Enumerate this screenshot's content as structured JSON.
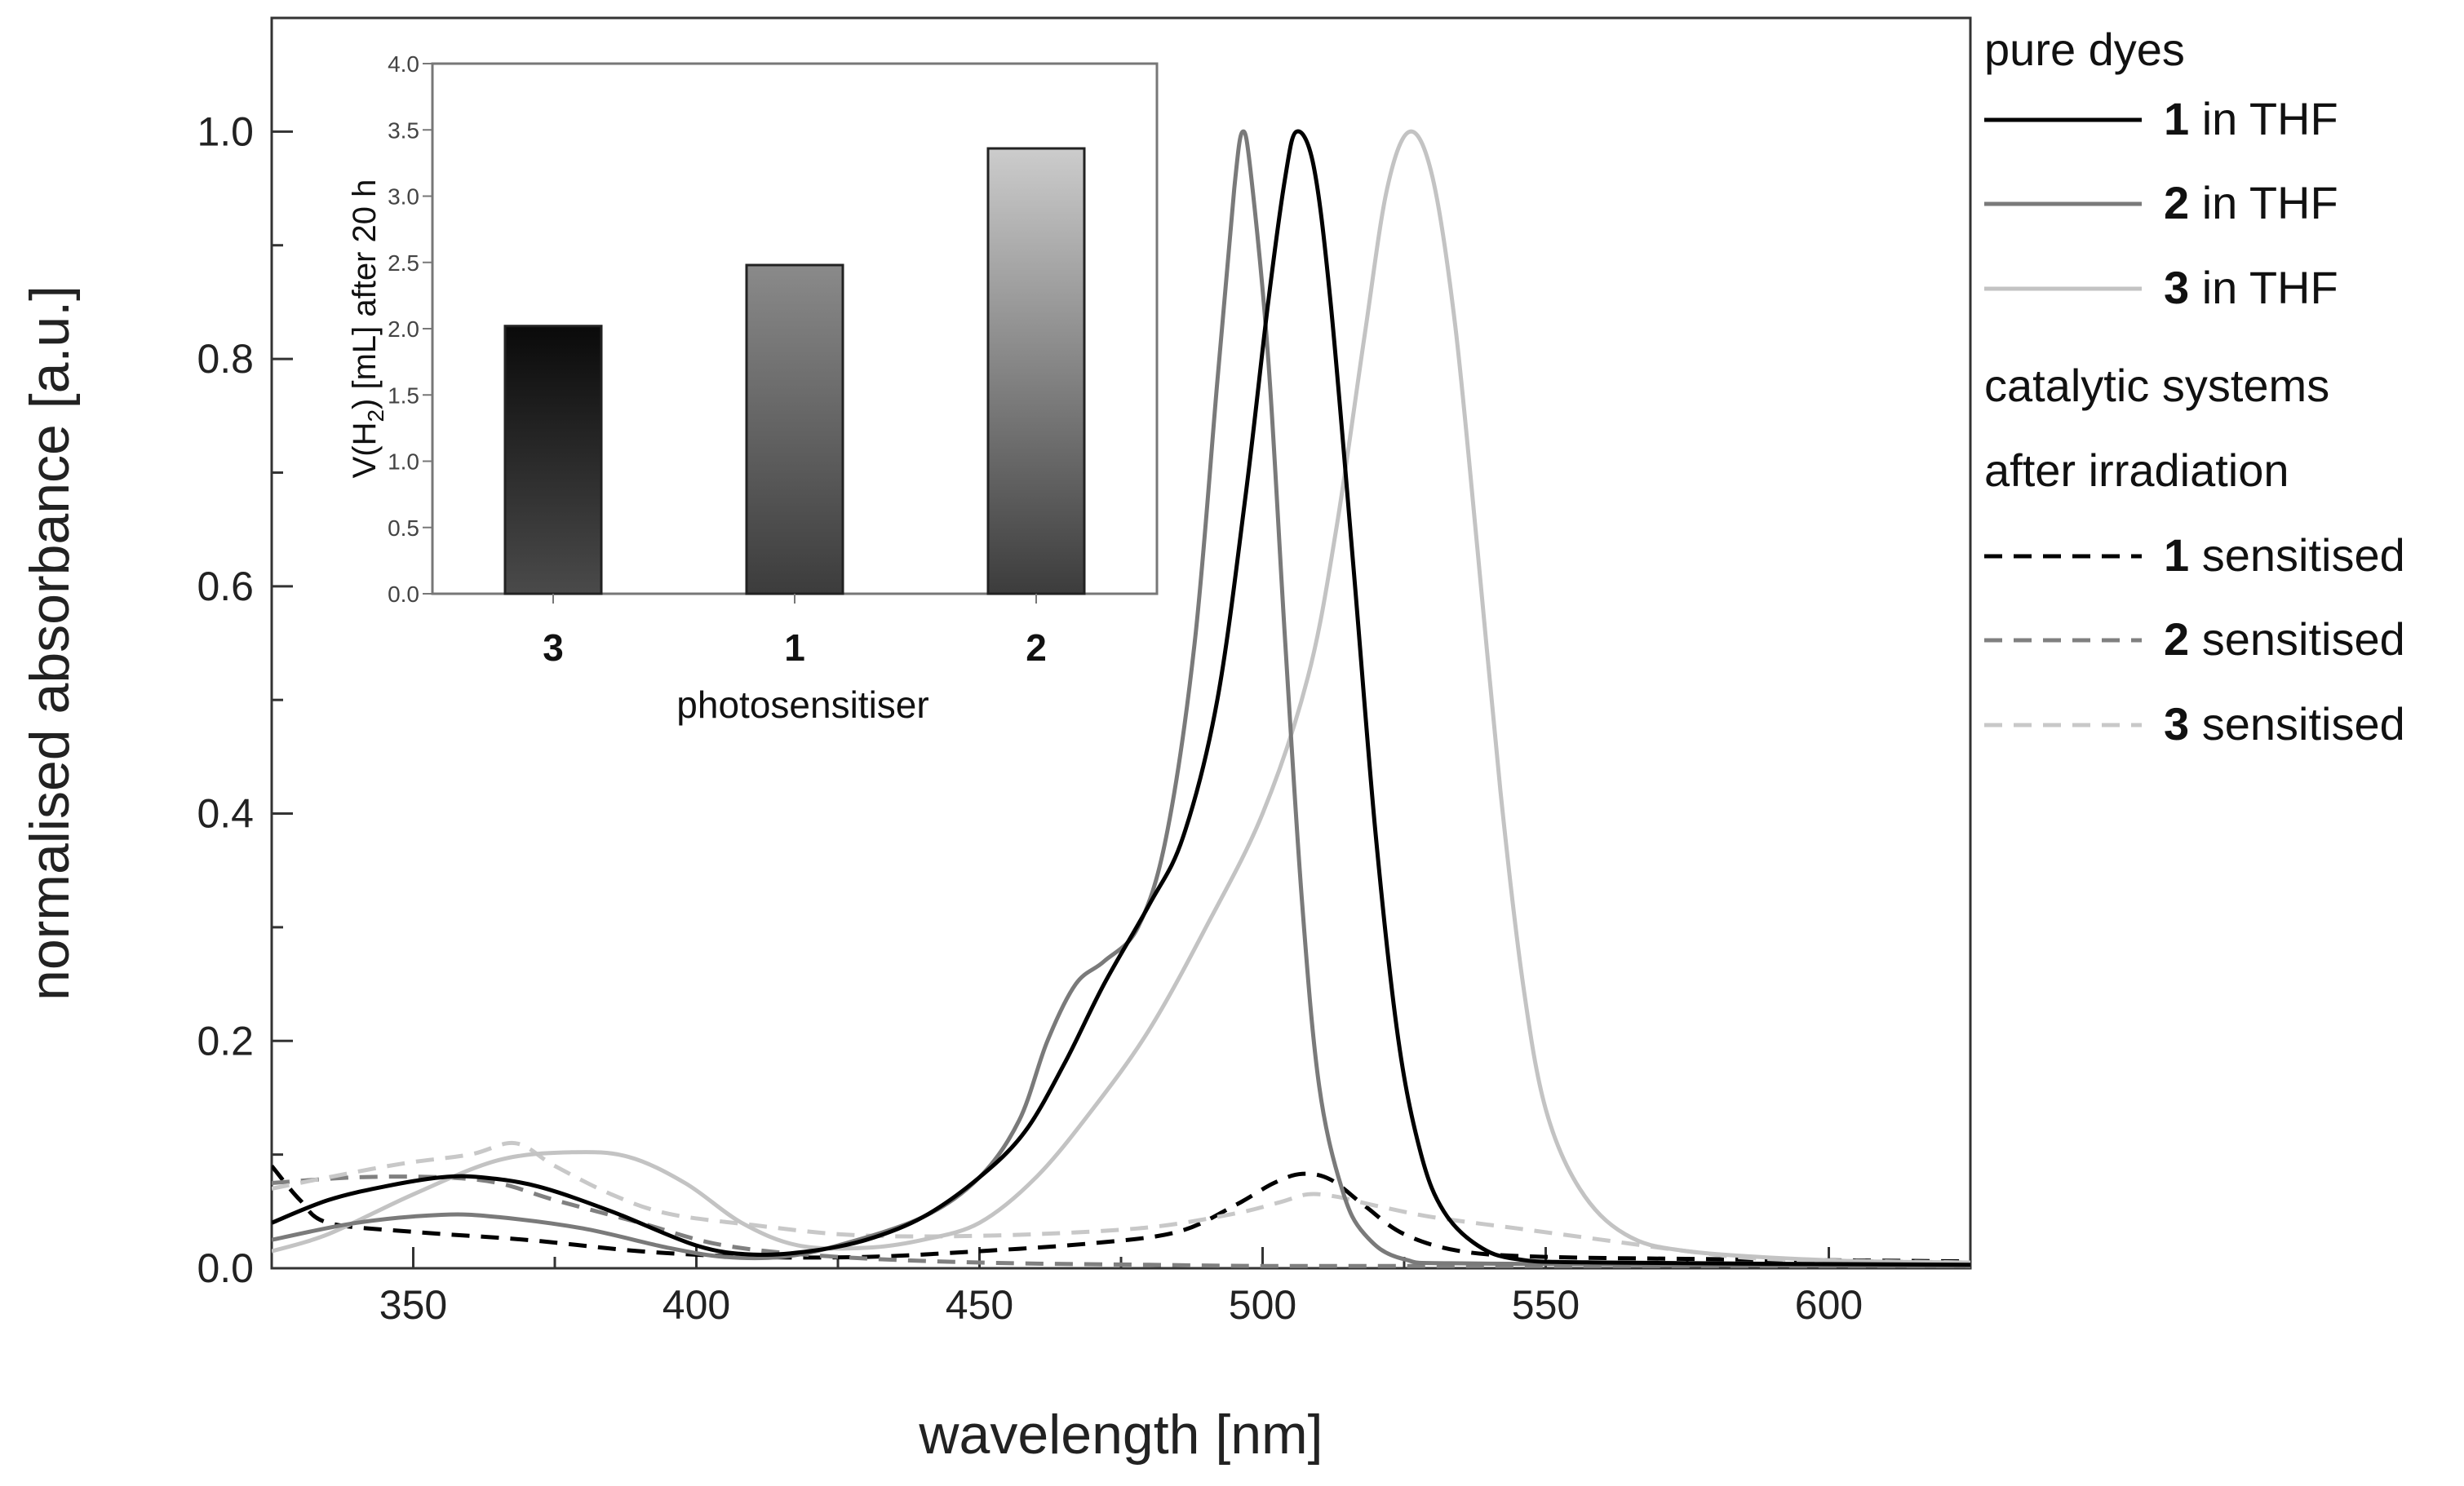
{
  "chart_data": [
    {
      "type": "line",
      "title": "",
      "xlabel": "wavelength [nm]",
      "ylabel": "normalised absorbance [a.u.]",
      "xlim": [
        325,
        625
      ],
      "ylim": [
        0,
        1.1
      ],
      "x_ticks": [
        "350",
        "400",
        "450",
        "500",
        "550",
        "600"
      ],
      "y_ticks": [
        "0.0",
        "0.2",
        "0.4",
        "0.6",
        "0.8",
        "1.0"
      ],
      "x_tick_values": [
        350,
        400,
        450,
        500,
        550,
        600
      ],
      "y_tick_values": [
        0.0,
        0.2,
        0.4,
        0.6,
        0.8,
        1.0
      ],
      "legend": {
        "placement": "right",
        "group1_title": "pure dyes",
        "group2_title_line1": "catalytic systems",
        "group2_title_line2": "after irradiation"
      },
      "series": [
        {
          "name": "1 in THF",
          "num": "1",
          "suffix": "in THF",
          "color": "#000000",
          "style": "solid",
          "points": [
            [
              325,
              0.04
            ],
            [
              335,
              0.06
            ],
            [
              345,
              0.072
            ],
            [
              355,
              0.08
            ],
            [
              362,
              0.08
            ],
            [
              372,
              0.072
            ],
            [
              385,
              0.05
            ],
            [
              400,
              0.02
            ],
            [
              410,
              0.012
            ],
            [
              420,
              0.015
            ],
            [
              430,
              0.025
            ],
            [
              440,
              0.045
            ],
            [
              450,
              0.08
            ],
            [
              458,
              0.12
            ],
            [
              465,
              0.18
            ],
            [
              472,
              0.25
            ],
            [
              480,
              0.32
            ],
            [
              486,
              0.38
            ],
            [
              492,
              0.5
            ],
            [
              497,
              0.68
            ],
            [
              501,
              0.85
            ],
            [
              504,
              0.96
            ],
            [
              506,
              1.0
            ],
            [
              509,
              0.97
            ],
            [
              512,
              0.85
            ],
            [
              516,
              0.62
            ],
            [
              520,
              0.38
            ],
            [
              524,
              0.2
            ],
            [
              528,
              0.1
            ],
            [
              532,
              0.05
            ],
            [
              538,
              0.02
            ],
            [
              545,
              0.008
            ],
            [
              560,
              0.005
            ],
            [
              625,
              0.003
            ]
          ]
        },
        {
          "name": "2 in THF",
          "num": "2",
          "suffix": "in THF",
          "color": "#7a7a7a",
          "style": "solid",
          "points": [
            [
              325,
              0.025
            ],
            [
              340,
              0.04
            ],
            [
              355,
              0.047
            ],
            [
              365,
              0.045
            ],
            [
              380,
              0.035
            ],
            [
              395,
              0.018
            ],
            [
              405,
              0.01
            ],
            [
              415,
              0.01
            ],
            [
              425,
              0.02
            ],
            [
              440,
              0.045
            ],
            [
              450,
              0.08
            ],
            [
              457,
              0.13
            ],
            [
              462,
              0.2
            ],
            [
              467,
              0.25
            ],
            [
              472,
              0.27
            ],
            [
              478,
              0.3
            ],
            [
              483,
              0.38
            ],
            [
              488,
              0.55
            ],
            [
              492,
              0.78
            ],
            [
              495,
              0.95
            ],
            [
              496.5,
              1.0
            ],
            [
              498,
              0.96
            ],
            [
              501,
              0.8
            ],
            [
              504,
              0.55
            ],
            [
              507,
              0.32
            ],
            [
              510,
              0.16
            ],
            [
              514,
              0.07
            ],
            [
              518,
              0.03
            ],
            [
              525,
              0.008
            ],
            [
              540,
              0.004
            ],
            [
              625,
              0.002
            ]
          ]
        },
        {
          "name": "3 in THF",
          "num": "3",
          "suffix": "in THF",
          "color": "#c3c3c3",
          "style": "solid",
          "points": [
            [
              325,
              0.015
            ],
            [
              335,
              0.03
            ],
            [
              350,
              0.065
            ],
            [
              365,
              0.095
            ],
            [
              378,
              0.102
            ],
            [
              388,
              0.098
            ],
            [
              398,
              0.075
            ],
            [
              408,
              0.04
            ],
            [
              418,
              0.02
            ],
            [
              430,
              0.018
            ],
            [
              440,
              0.025
            ],
            [
              450,
              0.04
            ],
            [
              460,
              0.08
            ],
            [
              470,
              0.14
            ],
            [
              480,
              0.21
            ],
            [
              490,
              0.3
            ],
            [
              500,
              0.4
            ],
            [
              508,
              0.52
            ],
            [
              513,
              0.65
            ],
            [
              518,
              0.82
            ],
            [
              522,
              0.95
            ],
            [
              526,
              1.0
            ],
            [
              530,
              0.96
            ],
            [
              534,
              0.83
            ],
            [
              538,
              0.63
            ],
            [
              542,
              0.42
            ],
            [
              546,
              0.25
            ],
            [
              550,
              0.14
            ],
            [
              556,
              0.07
            ],
            [
              564,
              0.03
            ],
            [
              575,
              0.015
            ],
            [
              600,
              0.007
            ],
            [
              625,
              0.005
            ]
          ]
        },
        {
          "name": "1 sensitised",
          "num": "1",
          "suffix": "sensitised",
          "color": "#000000",
          "style": "dashed",
          "points": [
            [
              325,
              0.09
            ],
            [
              330,
              0.06
            ],
            [
              335,
              0.04
            ],
            [
              350,
              0.032
            ],
            [
              370,
              0.025
            ],
            [
              390,
              0.015
            ],
            [
              410,
              0.01
            ],
            [
              430,
              0.01
            ],
            [
              450,
              0.015
            ],
            [
              470,
              0.022
            ],
            [
              485,
              0.032
            ],
            [
              495,
              0.055
            ],
            [
              502,
              0.075
            ],
            [
              507,
              0.083
            ],
            [
              512,
              0.078
            ],
            [
              518,
              0.055
            ],
            [
              525,
              0.03
            ],
            [
              535,
              0.015
            ],
            [
              550,
              0.01
            ],
            [
              580,
              0.008
            ],
            [
              625,
              0.006
            ]
          ]
        },
        {
          "name": "2 sensitised",
          "num": "2",
          "suffix": "sensitised",
          "color": "#808080",
          "style": "dashed",
          "points": [
            [
              325,
              0.075
            ],
            [
              340,
              0.08
            ],
            [
              355,
              0.08
            ],
            [
              365,
              0.075
            ],
            [
              375,
              0.06
            ],
            [
              390,
              0.04
            ],
            [
              405,
              0.02
            ],
            [
              425,
              0.01
            ],
            [
              450,
              0.005
            ],
            [
              480,
              0.003
            ],
            [
              500,
              0.002
            ],
            [
              540,
              0.002
            ],
            [
              625,
              0.002
            ]
          ]
        },
        {
          "name": "3 sensitised",
          "num": "3",
          "suffix": "sensitised",
          "color": "#c8c8c8",
          "style": "dashed",
          "points": [
            [
              325,
              0.07
            ],
            [
              335,
              0.08
            ],
            [
              348,
              0.092
            ],
            [
              360,
              0.1
            ],
            [
              368,
              0.11
            ],
            [
              375,
              0.09
            ],
            [
              385,
              0.065
            ],
            [
              395,
              0.048
            ],
            [
              410,
              0.038
            ],
            [
              425,
              0.03
            ],
            [
              440,
              0.028
            ],
            [
              460,
              0.03
            ],
            [
              480,
              0.036
            ],
            [
              495,
              0.048
            ],
            [
              503,
              0.058
            ],
            [
              508,
              0.065
            ],
            [
              513,
              0.063
            ],
            [
              520,
              0.055
            ],
            [
              530,
              0.045
            ],
            [
              545,
              0.035
            ],
            [
              560,
              0.025
            ],
            [
              575,
              0.015
            ],
            [
              590,
              0.008
            ],
            [
              625,
              0.005
            ]
          ]
        }
      ]
    },
    {
      "type": "bar",
      "title": "",
      "xlabel": "photosensitiser",
      "ylabel": "V(H2) [mL] after 20 h",
      "ylabel_pre": "V(H",
      "ylabel_sub": "2",
      "ylabel_post": ") [mL] after 20 h",
      "categories": [
        "3",
        "1",
        "2"
      ],
      "values": [
        2.02,
        2.48,
        3.36
      ],
      "ylim": [
        0,
        4.0
      ],
      "y_ticks": [
        "0.0",
        "0.5",
        "1.0",
        "1.5",
        "2.0",
        "2.5",
        "3.0",
        "3.5",
        "4.0"
      ],
      "y_tick_values": [
        0.0,
        0.5,
        1.0,
        1.5,
        2.0,
        2.5,
        3.0,
        3.5,
        4.0
      ],
      "bar_colors": [
        {
          "top": "#0a0a0a",
          "bottom": "#4a4a4a"
        },
        {
          "top": "#8a8a8a",
          "bottom": "#3c3c3c"
        },
        {
          "top": "#cccccc",
          "bottom": "#3c3c3c"
        }
      ]
    }
  ]
}
